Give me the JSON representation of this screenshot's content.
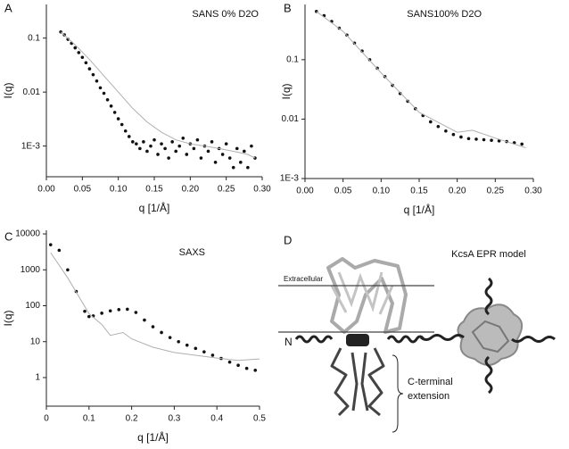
{
  "chart_data": [
    {
      "type": "scatter",
      "panel": "A",
      "annotation": "SANS 0% D2O",
      "xlabel": "q [1/Å]",
      "ylabel": "I(q)",
      "log_y": true,
      "xlim": [
        0,
        0.3
      ],
      "ylim": [
        0.00027,
        0.42
      ],
      "xticks": [
        {
          "value": 0,
          "label": "0.00"
        },
        0.05,
        {
          "value": 0.1,
          "label": "0.10"
        },
        0.15,
        {
          "value": 0.2,
          "label": "0.20"
        },
        0.25,
        {
          "value": 0.3,
          "label": "0.30"
        }
      ],
      "yticks": [
        {
          "value": 0.001,
          "label": "1E-3"
        },
        0.01,
        0.1
      ],
      "series": [
        {
          "style": "points",
          "color": "#111111",
          "x": [
            0.02,
            0.025,
            0.03,
            0.035,
            0.04,
            0.045,
            0.05,
            0.055,
            0.06,
            0.065,
            0.07,
            0.075,
            0.08,
            0.085,
            0.09,
            0.095,
            0.1,
            0.105,
            0.11,
            0.115,
            0.12,
            0.125,
            0.13,
            0.135,
            0.14,
            0.145,
            0.15,
            0.155,
            0.16,
            0.165,
            0.17,
            0.175,
            0.18,
            0.185,
            0.19,
            0.195,
            0.2,
            0.205,
            0.21,
            0.215,
            0.22,
            0.225,
            0.23,
            0.235,
            0.24,
            0.245,
            0.25,
            0.255,
            0.26,
            0.265,
            0.27,
            0.275,
            0.28,
            0.285,
            0.29
          ],
          "values": [
            0.13,
            0.115,
            0.095,
            0.08,
            0.066,
            0.054,
            0.044,
            0.035,
            0.027,
            0.021,
            0.016,
            0.012,
            0.0095,
            0.0072,
            0.0055,
            0.0042,
            0.0032,
            0.0025,
            0.0019,
            0.0015,
            0.0012,
            0.0011,
            0.0009,
            0.0012,
            0.0008,
            0.001,
            0.0013,
            0.0007,
            0.0011,
            0.0009,
            0.0006,
            0.0012,
            0.0008,
            0.001,
            0.0014,
            0.0007,
            0.0011,
            0.0009,
            0.0013,
            0.0006,
            0.001,
            0.0008,
            0.0012,
            0.0005,
            0.0009,
            0.0007,
            0.0011,
            0.0006,
            0.0004,
            0.0009,
            0.0005,
            0.0008,
            0.0004,
            0.001,
            0.0006
          ]
        },
        {
          "style": "line",
          "color": "#b0b0b0",
          "x": [
            0.02,
            0.04,
            0.06,
            0.08,
            0.1,
            0.12,
            0.14,
            0.16,
            0.18,
            0.2,
            0.22,
            0.24,
            0.26,
            0.28,
            0.29
          ],
          "values": [
            0.13,
            0.075,
            0.04,
            0.02,
            0.01,
            0.005,
            0.0028,
            0.0018,
            0.0013,
            0.0011,
            0.001,
            0.0009,
            0.0008,
            0.0007,
            0.0006
          ]
        }
      ]
    },
    {
      "type": "scatter",
      "panel": "B",
      "annotation": "SANS100% D2O",
      "xlabel": "q [1/Å]",
      "ylabel": "I(q)",
      "log_y": true,
      "xlim": [
        0,
        0.3
      ],
      "ylim": [
        0.001,
        0.85
      ],
      "xticks": [
        {
          "value": 0,
          "label": "0.00"
        },
        0.05,
        {
          "value": 0.1,
          "label": "0.10"
        },
        0.15,
        {
          "value": 0.2,
          "label": "0.20"
        },
        0.25,
        {
          "value": 0.3,
          "label": "0.30"
        }
      ],
      "yticks": [
        {
          "value": 0.001,
          "label": "1E-3"
        },
        0.01,
        0.1
      ],
      "series": [
        {
          "style": "points",
          "color": "#111111",
          "x": [
            0.015,
            0.025,
            0.035,
            0.045,
            0.055,
            0.065,
            0.075,
            0.085,
            0.095,
            0.105,
            0.115,
            0.125,
            0.135,
            0.145,
            0.155,
            0.165,
            0.175,
            0.185,
            0.195,
            0.205,
            0.215,
            0.225,
            0.235,
            0.245,
            0.255,
            0.265,
            0.275,
            0.285
          ],
          "values": [
            0.65,
            0.55,
            0.44,
            0.34,
            0.26,
            0.19,
            0.14,
            0.1,
            0.072,
            0.052,
            0.037,
            0.027,
            0.02,
            0.015,
            0.0115,
            0.009,
            0.0075,
            0.0063,
            0.0055,
            0.005,
            0.0047,
            0.0046,
            0.0045,
            0.0044,
            0.0043,
            0.0042,
            0.004,
            0.0038
          ]
        },
        {
          "style": "line",
          "color": "#b0b0b0",
          "x": [
            0.015,
            0.05,
            0.1,
            0.15,
            0.2,
            0.22,
            0.25,
            0.29
          ],
          "values": [
            0.65,
            0.3,
            0.06,
            0.013,
            0.006,
            0.0065,
            0.0048,
            0.0033
          ]
        }
      ]
    },
    {
      "type": "scatter",
      "panel": "C",
      "annotation": "SAXS",
      "xlabel": "q [1/Å]",
      "ylabel": "I(q)",
      "log_y": true,
      "xlim": [
        0,
        0.5
      ],
      "ylim": [
        0.16,
        12600
      ],
      "xticks": [
        0,
        0.1,
        0.2,
        0.3,
        0.4,
        0.5
      ],
      "yticks": [
        1,
        10,
        100,
        1000,
        10000
      ],
      "series": [
        {
          "style": "points",
          "color": "#111111",
          "x": [
            0.01,
            0.03,
            0.05,
            0.07,
            0.09,
            0.1,
            0.11,
            0.13,
            0.15,
            0.17,
            0.19,
            0.21,
            0.23,
            0.25,
            0.27,
            0.29,
            0.31,
            0.33,
            0.35,
            0.37,
            0.39,
            0.41,
            0.43,
            0.45,
            0.47,
            0.49
          ],
          "values": [
            5000,
            3500,
            1000,
            250,
            70,
            50,
            52,
            62,
            72,
            78,
            80,
            65,
            40,
            26,
            18,
            13,
            10,
            8,
            6.5,
            5.2,
            4.2,
            3.4,
            2.7,
            2.2,
            1.8,
            1.6
          ]
        },
        {
          "style": "line",
          "color": "#b0b0b0",
          "x": [
            0.01,
            0.05,
            0.1,
            0.13,
            0.15,
            0.18,
            0.2,
            0.25,
            0.3,
            0.4,
            0.45,
            0.5
          ],
          "values": [
            3000,
            600,
            60,
            30,
            15,
            18,
            12,
            7,
            5,
            3.5,
            3,
            3.3
          ]
        }
      ]
    }
  ],
  "diagram": {
    "panel": "D",
    "title": "KcsA EPR model",
    "membrane_label": "Extracellular",
    "terminus_label": "N",
    "annotation_lines": [
      "C-terminal",
      "extension"
    ]
  }
}
